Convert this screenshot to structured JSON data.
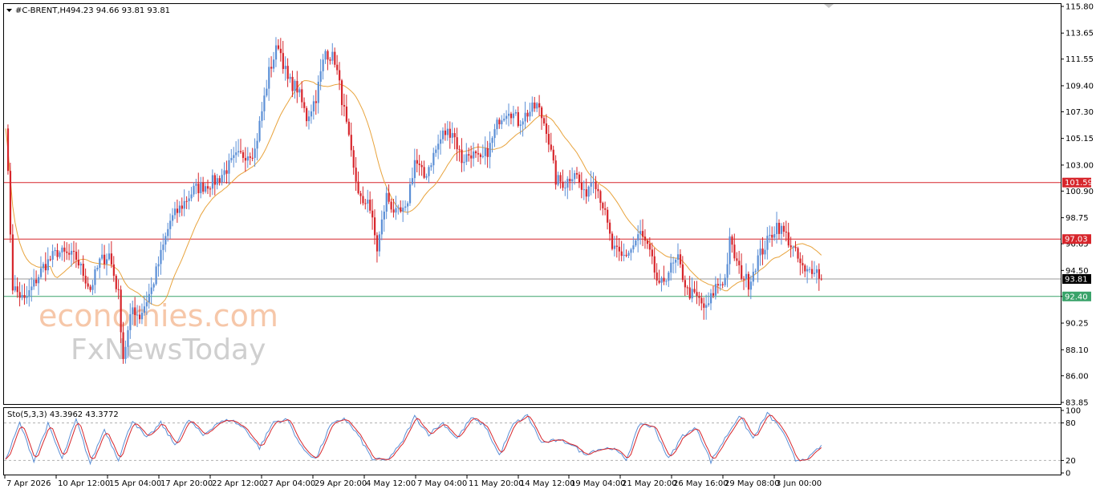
{
  "header": {
    "symbol": "#C-BRENT,H4",
    "ohlc": "94.23 94.66 93.81 93.81"
  },
  "oscillator": {
    "title": "Sto(5,3,3) 43.3962 43.3772",
    "levels": [
      100,
      80,
      20,
      0
    ],
    "level_labels": [
      "100",
      "80",
      "20",
      "0"
    ]
  },
  "watermark": {
    "line1": "economies.com",
    "line2": "FxNewsToday"
  },
  "colors": {
    "bull": "#5b8fd6",
    "bear": "#d7262c",
    "ma": "#e8a33c",
    "resistance": "#d7262c",
    "support": "#3aa36a",
    "price_line": "#9a9a9a",
    "stoch_main": "#5b8fd6",
    "stoch_signal": "#d7262c"
  },
  "chart_data": {
    "type": "candlestick",
    "ylim": [
      83.85,
      115.8
    ],
    "y_ticks": [
      115.8,
      113.65,
      111.55,
      109.4,
      107.3,
      105.15,
      103.0,
      100.9,
      98.75,
      96.65,
      94.5,
      92.4,
      90.25,
      88.1,
      86.0,
      83.85
    ],
    "y_tick_labels": [
      "115.80",
      "113.65",
      "111.55",
      "109.40",
      "107.30",
      "105.15",
      "103.00",
      "100.90",
      "98.75",
      "96.65",
      "94.50",
      "92.40",
      "90.25",
      "88.10",
      "86.00",
      "83.85"
    ],
    "x_labels": [
      "7 Apr 2026",
      "10 Apr 12:00",
      "15 Apr 04:00",
      "17 Apr 20:00",
      "22 Apr 12:00",
      "27 Apr 04:00",
      "29 Apr 20:00",
      "4 May 12:00",
      "7 May 04:00",
      "11 May 20:00",
      "14 May 12:00",
      "19 May 04:00",
      "21 May 20:00",
      "26 May 16:00",
      "29 May 08:00",
      "3 Jun 00:00"
    ],
    "levels": [
      {
        "value": 101.59,
        "label": "101.59",
        "kind": "resistance"
      },
      {
        "value": 97.03,
        "label": "97.03",
        "kind": "resistance"
      },
      {
        "value": 93.81,
        "label": "93.81",
        "kind": "current"
      },
      {
        "value": 92.4,
        "label": "92.40",
        "kind": "support"
      }
    ],
    "close_anchors": [
      [
        0,
        106.5
      ],
      [
        3,
        93.2
      ],
      [
        8,
        92.0
      ],
      [
        16,
        94.8
      ],
      [
        22,
        96.0
      ],
      [
        30,
        95.5
      ],
      [
        36,
        93.0
      ],
      [
        40,
        95.2
      ],
      [
        44,
        95.8
      ],
      [
        48,
        92.5
      ],
      [
        50,
        87.5
      ],
      [
        54,
        91.5
      ],
      [
        57,
        90.8
      ],
      [
        62,
        93.0
      ],
      [
        70,
        98.5
      ],
      [
        80,
        101.0
      ],
      [
        90,
        101.8
      ],
      [
        98,
        103.6
      ],
      [
        106,
        104.2
      ],
      [
        112,
        110.5
      ],
      [
        116,
        112.8
      ],
      [
        120,
        109.8
      ],
      [
        124,
        109.2
      ],
      [
        128,
        106.8
      ],
      [
        132,
        108.5
      ],
      [
        136,
        112.2
      ],
      [
        140,
        111.5
      ],
      [
        144,
        107.3
      ],
      [
        148,
        102.5
      ],
      [
        152,
        99.5
      ],
      [
        154,
        100.5
      ],
      [
        158,
        96.2
      ],
      [
        162,
        100.5
      ],
      [
        166,
        99.0
      ],
      [
        170,
        99.2
      ],
      [
        174,
        103.4
      ],
      [
        178,
        102.0
      ],
      [
        182,
        103.8
      ],
      [
        186,
        105.5
      ],
      [
        190,
        105.8
      ],
      [
        194,
        103.4
      ],
      [
        198,
        104.0
      ],
      [
        202,
        103.2
      ],
      [
        206,
        104.5
      ],
      [
        210,
        106.8
      ],
      [
        214,
        107.6
      ],
      [
        218,
        106.5
      ],
      [
        222,
        107.2
      ],
      [
        226,
        107.8
      ],
      [
        230,
        106.0
      ],
      [
        234,
        101.8
      ],
      [
        238,
        101.5
      ],
      [
        242,
        102.6
      ],
      [
        246,
        100.5
      ],
      [
        250,
        102.2
      ],
      [
        254,
        99.8
      ],
      [
        258,
        96.3
      ],
      [
        262,
        95.5
      ],
      [
        266,
        96.2
      ],
      [
        270,
        97.5
      ],
      [
        274,
        95.8
      ],
      [
        278,
        93.0
      ],
      [
        282,
        94.5
      ],
      [
        286,
        95.3
      ],
      [
        290,
        92.8
      ],
      [
        294,
        92.3
      ],
      [
        298,
        91.3
      ],
      [
        302,
        93.2
      ],
      [
        306,
        93.8
      ],
      [
        308,
        96.8
      ],
      [
        312,
        94.5
      ],
      [
        316,
        93.5
      ],
      [
        320,
        95.5
      ],
      [
        324,
        96.8
      ],
      [
        328,
        98.2
      ],
      [
        332,
        97.3
      ],
      [
        336,
        95.8
      ],
      [
        340,
        94.2
      ],
      [
        344,
        94.8
      ],
      [
        347,
        93.81
      ]
    ],
    "stochastic": {
      "series": [
        {
          "name": "Sto main",
          "anchors": [
            [
              0,
              20
            ],
            [
              6,
              80
            ],
            [
              12,
              20
            ],
            [
              18,
              78
            ],
            [
              24,
              22
            ],
            [
              30,
              85
            ],
            [
              36,
              15
            ],
            [
              42,
              70
            ],
            [
              48,
              22
            ],
            [
              54,
              85
            ],
            [
              60,
              55
            ],
            [
              66,
              80
            ],
            [
              72,
              45
            ],
            [
              78,
              85
            ],
            [
              84,
              60
            ],
            [
              90,
              80
            ],
            [
              96,
              85
            ],
            [
              102,
              70
            ],
            [
              108,
              40
            ],
            [
              114,
              82
            ],
            [
              120,
              85
            ],
            [
              126,
              40
            ],
            [
              132,
              22
            ],
            [
              138,
              75
            ],
            [
              144,
              88
            ],
            [
              150,
              60
            ],
            [
              156,
              22
            ],
            [
              162,
              20
            ],
            [
              168,
              45
            ],
            [
              174,
              90
            ],
            [
              180,
              62
            ],
            [
              186,
              80
            ],
            [
              192,
              55
            ],
            [
              198,
              88
            ],
            [
              204,
              75
            ],
            [
              210,
              28
            ],
            [
              216,
              78
            ],
            [
              222,
              92
            ],
            [
              228,
              48
            ],
            [
              234,
              52
            ],
            [
              240,
              48
            ],
            [
              246,
              30
            ],
            [
              252,
              38
            ],
            [
              258,
              40
            ],
            [
              264,
              22
            ],
            [
              270,
              80
            ],
            [
              276,
              72
            ],
            [
              282,
              22
            ],
            [
              288,
              60
            ],
            [
              294,
              72
            ],
            [
              300,
              18
            ],
            [
              306,
              55
            ],
            [
              312,
              92
            ],
            [
              318,
              55
            ],
            [
              324,
              95
            ],
            [
              330,
              70
            ],
            [
              336,
              20
            ],
            [
              342,
              25
            ],
            [
              347,
              43.4
            ]
          ]
        }
      ]
    }
  }
}
